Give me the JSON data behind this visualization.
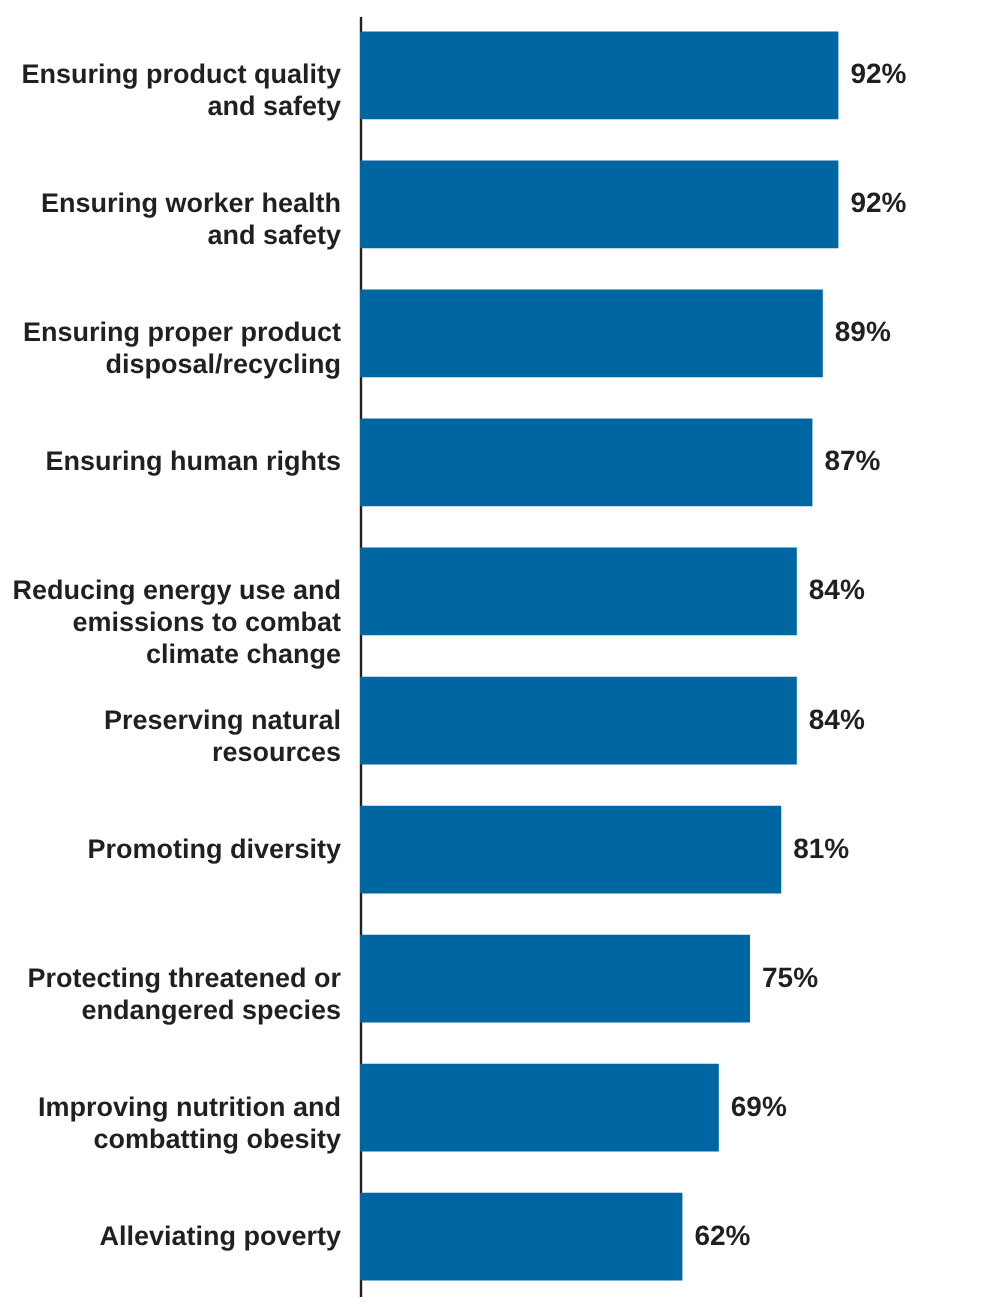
{
  "chart_data": {
    "type": "bar",
    "orientation": "horizontal",
    "categories": [
      "Ensuring product quality and safety",
      "Ensuring worker health and safety",
      "Ensuring proper product disposal/recycling",
      "Ensuring human rights",
      "Reducing energy use and emissions to combat climate change",
      "Preserving natural resources",
      "Promoting diversity",
      "Protecting threatened or endangered species",
      "Improving nutrition and combatting obesity",
      "Alleviating poverty"
    ],
    "values": [
      92,
      92,
      89,
      87,
      84,
      84,
      81,
      75,
      69,
      62
    ],
    "value_labels": [
      "92%",
      "92%",
      "89%",
      "87%",
      "84%",
      "84%",
      "81%",
      "75%",
      "69%",
      "62%"
    ],
    "color": "#0066a1"
  }
}
